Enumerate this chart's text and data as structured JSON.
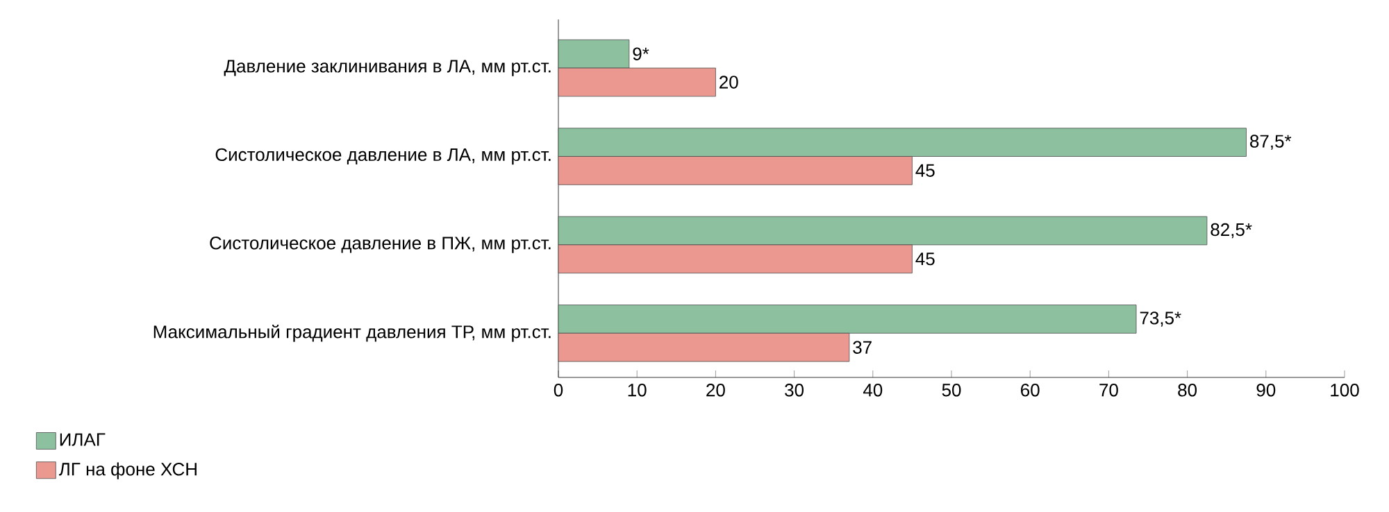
{
  "chart_data": {
    "type": "bar",
    "orientation": "horizontal",
    "categories": [
      "Давление заклинивания в ЛА, мм рт.ст.",
      "Систолическое давление в ЛА, мм рт.ст.",
      "Систолическое давление в ПЖ, мм рт.ст.",
      "Максимальный градиент давления ТР, мм рт.ст."
    ],
    "series": [
      {
        "name": "ИЛАГ",
        "color": "#8cc09e",
        "values": [
          9,
          87.5,
          82.5,
          73.5
        ],
        "value_labels": [
          "9*",
          "87,5*",
          "82,5*",
          "73,5*"
        ]
      },
      {
        "name": "ЛГ на фоне ХСН",
        "color": "#ea9890",
        "values": [
          20,
          45,
          45,
          37
        ],
        "value_labels": [
          "20",
          "45",
          "45",
          "37"
        ]
      }
    ],
    "xlim": [
      0,
      100
    ],
    "xticks": [
      0,
      10,
      20,
      30,
      40,
      50,
      60,
      70,
      80,
      90,
      100
    ],
    "grid": false,
    "legend": "bottom left"
  }
}
